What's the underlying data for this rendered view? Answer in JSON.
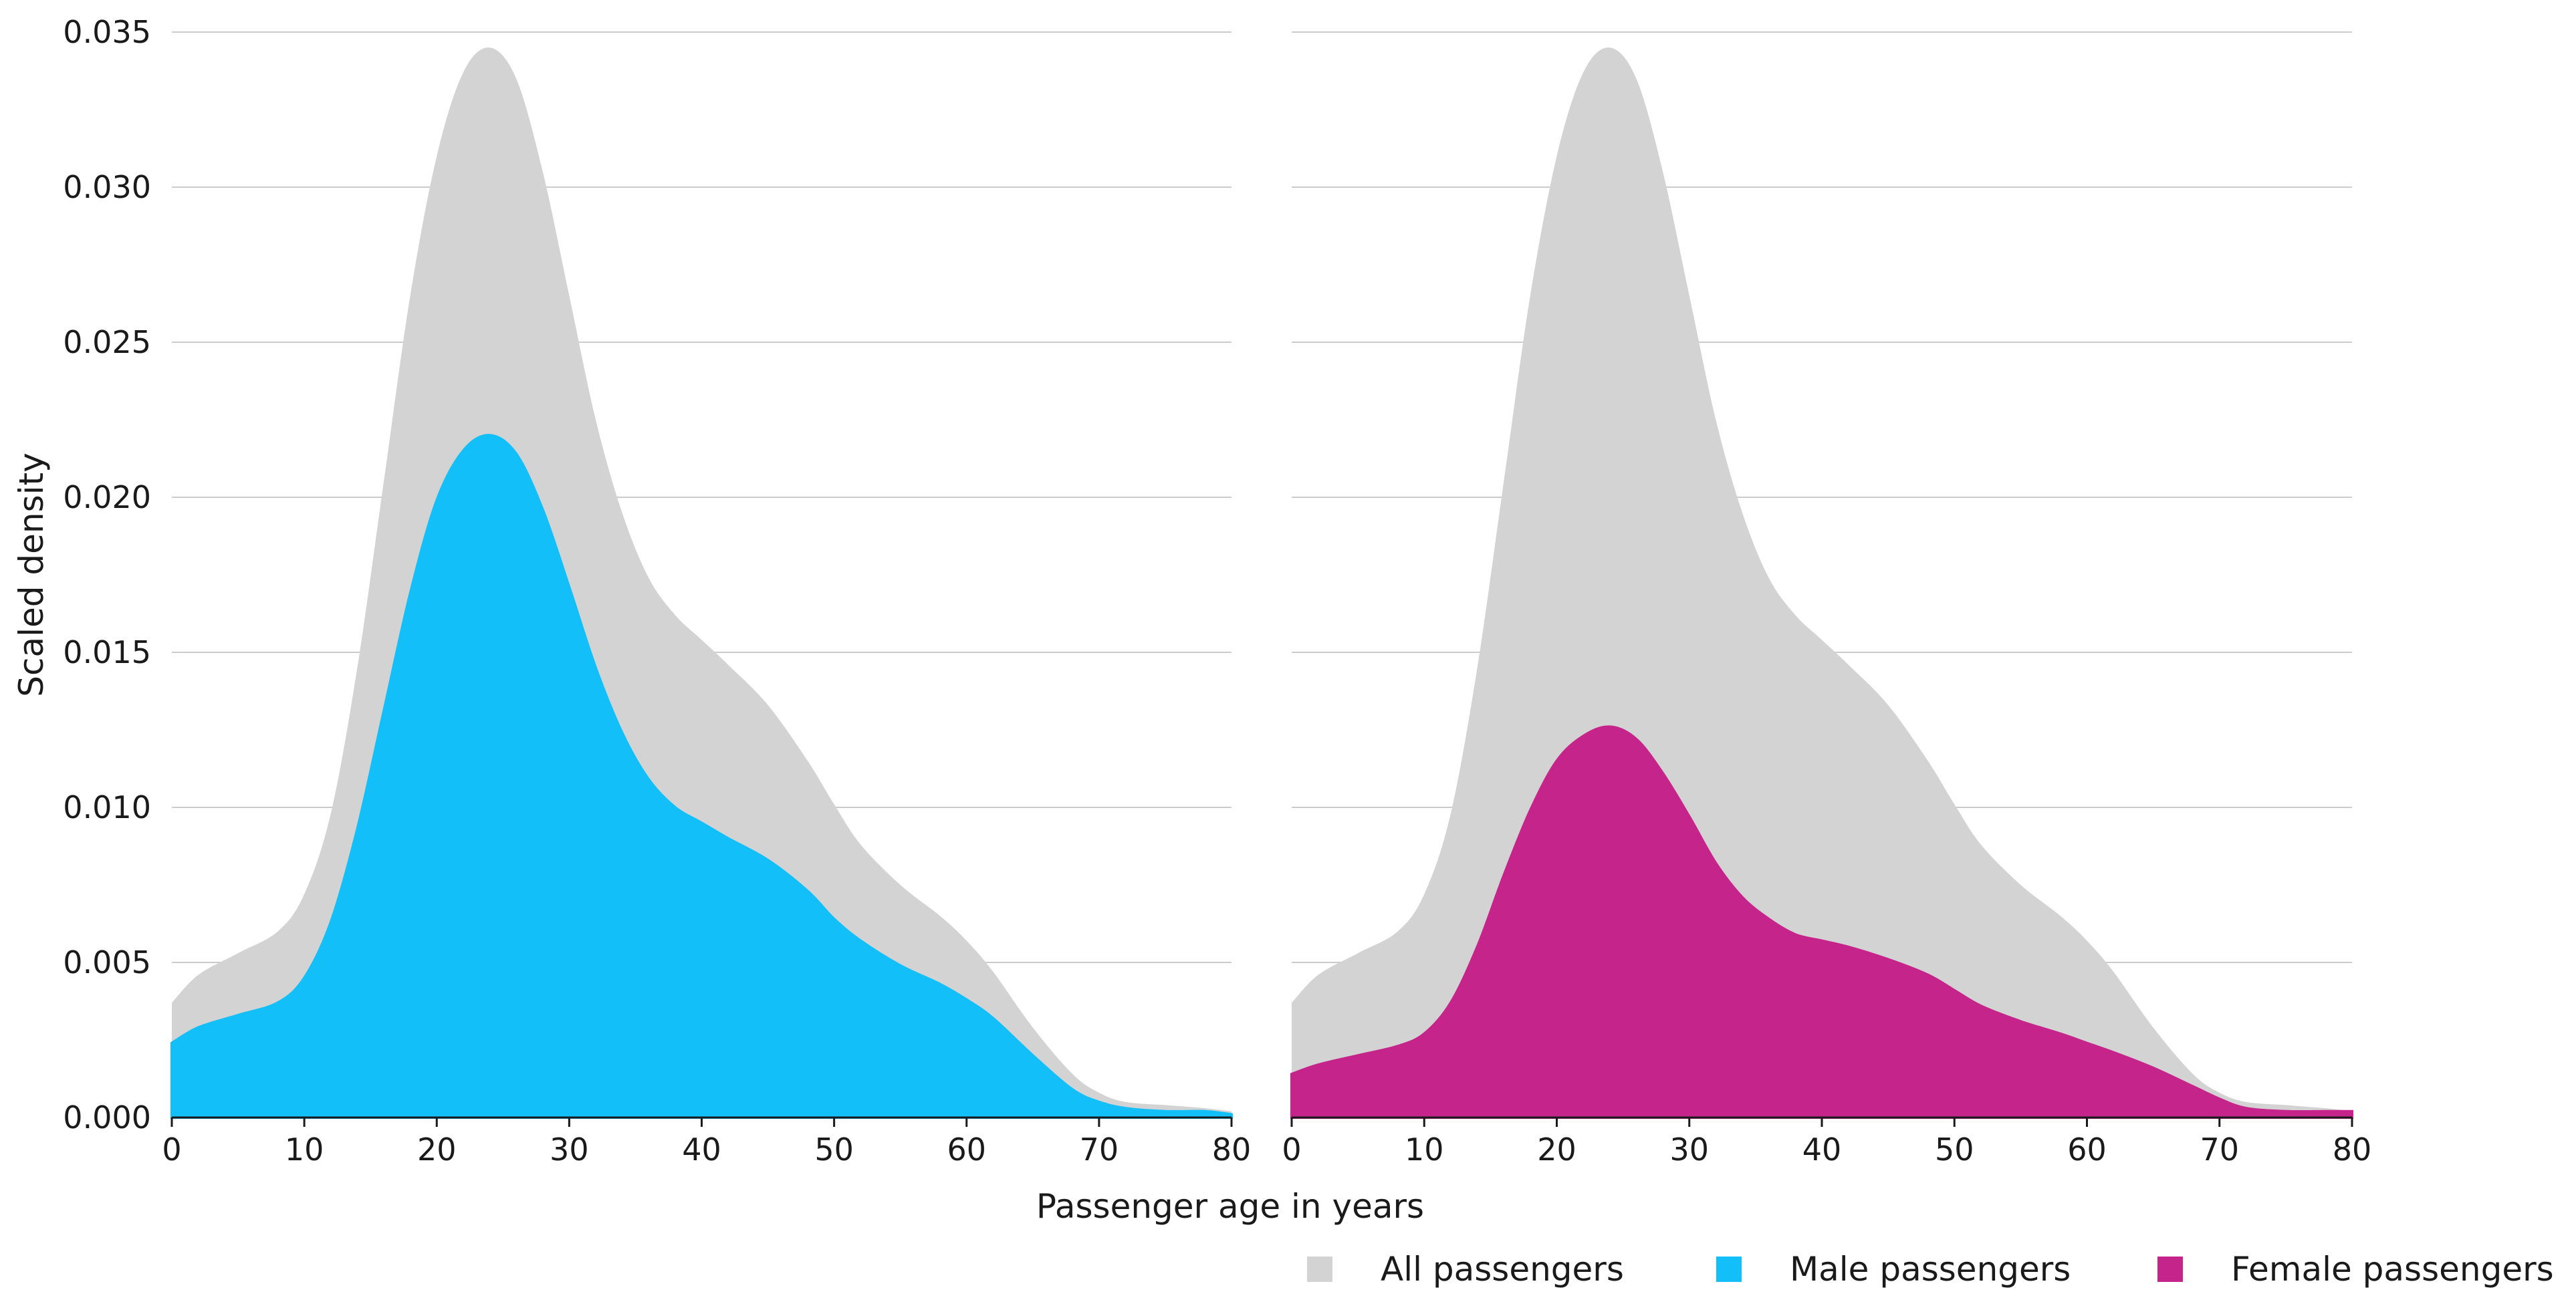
{
  "chart_data": {
    "type": "area",
    "xlabel": "Passenger age in years",
    "ylabel": "Scaled density",
    "xlim": [
      0,
      80
    ],
    "ylim": [
      0,
      0.035
    ],
    "x_ticks": [
      0,
      10,
      20,
      30,
      40,
      50,
      60,
      70,
      80
    ],
    "y_ticks": [
      "0.000",
      "0.005",
      "0.010",
      "0.015",
      "0.020",
      "0.025",
      "0.030",
      "0.035"
    ],
    "grid": "horizontal",
    "legend_position": "bottom-right",
    "legend": [
      {
        "label": "All passengers",
        "color": "#d3d3d3"
      },
      {
        "label": "Male passengers",
        "color": "#13bff8"
      },
      {
        "label": "Female passengers",
        "color": "#c5258a"
      }
    ],
    "x": [
      0,
      2,
      5,
      8,
      10,
      12,
      14,
      16,
      18,
      20,
      22,
      24,
      26,
      28,
      30,
      32,
      34,
      36,
      38,
      40,
      42,
      45,
      48,
      50,
      52,
      55,
      58,
      60,
      62,
      65,
      68,
      70,
      72,
      75,
      78,
      80
    ],
    "panels": [
      {
        "panel": "left",
        "series": [
          {
            "name": "All passengers",
            "color": "#d3d3d3",
            "values": [
              0.0037,
              0.0046,
              0.0053,
              0.006,
              0.0072,
              0.0098,
              0.0145,
              0.0205,
              0.0265,
              0.031,
              0.0337,
              0.0345,
              0.0335,
              0.0305,
              0.0265,
              0.0225,
              0.0195,
              0.0174,
              0.0162,
              0.0154,
              0.0146,
              0.0133,
              0.0115,
              0.0101,
              0.0088,
              0.0075,
              0.0065,
              0.0057,
              0.0047,
              0.0029,
              0.0014,
              0.0008,
              0.0005,
              0.0004,
              0.0003,
              0.0002
            ]
          },
          {
            "name": "Male passengers",
            "color": "#13bff8",
            "values": [
              0.0024,
              0.0029,
              0.0033,
              0.0037,
              0.0045,
              0.0063,
              0.0093,
              0.0131,
              0.0169,
              0.0199,
              0.0215,
              0.022,
              0.0214,
              0.0196,
              0.0171,
              0.0145,
              0.0124,
              0.0109,
              0.01,
              0.0095,
              0.009,
              0.0083,
              0.0073,
              0.0064,
              0.0057,
              0.0049,
              0.0043,
              0.0038,
              0.0032,
              0.002,
              0.0009,
              0.0005,
              0.0003,
              0.0002,
              0.0002,
              0.0001
            ]
          }
        ]
      },
      {
        "panel": "right",
        "series": [
          {
            "name": "All passengers",
            "color": "#d3d3d3",
            "values": [
              0.0037,
              0.0046,
              0.0053,
              0.006,
              0.0072,
              0.0098,
              0.0145,
              0.0205,
              0.0265,
              0.031,
              0.0337,
              0.0345,
              0.0335,
              0.0305,
              0.0265,
              0.0225,
              0.0195,
              0.0174,
              0.0162,
              0.0154,
              0.0146,
              0.0133,
              0.0115,
              0.0101,
              0.0088,
              0.0075,
              0.0065,
              0.0057,
              0.0047,
              0.0029,
              0.0014,
              0.0008,
              0.0005,
              0.0004,
              0.0003,
              0.0002
            ]
          },
          {
            "name": "Female passengers",
            "color": "#c5258a",
            "values": [
              0.0014,
              0.0017,
              0.002,
              0.0023,
              0.0027,
              0.0037,
              0.0055,
              0.0078,
              0.0099,
              0.0115,
              0.0123,
              0.0126,
              0.0122,
              0.0111,
              0.0097,
              0.0082,
              0.0071,
              0.0064,
              0.0059,
              0.0057,
              0.0055,
              0.0051,
              0.0046,
              0.0041,
              0.0036,
              0.0031,
              0.0027,
              0.0024,
              0.0021,
              0.0016,
              0.001,
              0.0006,
              0.0003,
              0.0002,
              0.0002,
              0.0002
            ]
          }
        ]
      }
    ]
  }
}
